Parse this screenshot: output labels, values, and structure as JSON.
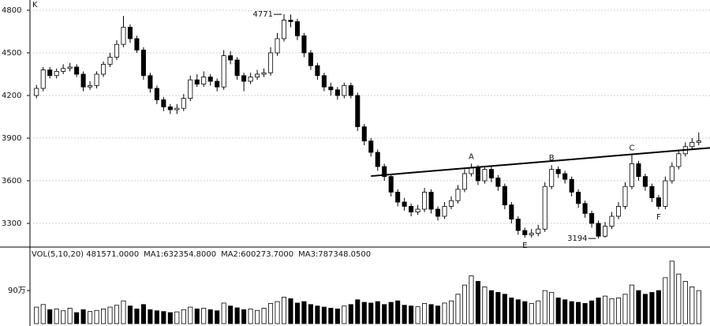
{
  "chart_data": [
    {
      "type": "candlestick",
      "axis_label": "K",
      "open": [
        4200,
        4250,
        4380,
        4340,
        4370,
        4390,
        4400,
        4350,
        4260,
        4270,
        4350,
        4420,
        4470,
        4560,
        4680,
        4600,
        4520,
        4340,
        4250,
        4170,
        4120,
        4100,
        4110,
        4180,
        4310,
        4280,
        4330,
        4300,
        4260,
        4480,
        4450,
        4340,
        4300,
        4330,
        4350,
        4360,
        4500,
        4600,
        4730,
        4720,
        4620,
        4500,
        4410,
        4340,
        4260,
        4240,
        4200,
        4270,
        4200,
        3980,
        3880,
        3800,
        3700,
        3630,
        3520,
        3450,
        3420,
        3380,
        3400,
        3520,
        3400,
        3350,
        3420,
        3460,
        3540,
        3650,
        3690,
        3600,
        3680,
        3620,
        3560,
        3430,
        3330,
        3250,
        3220,
        3230,
        3260,
        3560,
        3680,
        3650,
        3610,
        3520,
        3440,
        3370,
        3300,
        3210,
        3280,
        3350,
        3420,
        3560,
        3720,
        3630,
        3560,
        3480,
        3420,
        3600,
        3700,
        3790,
        3840,
        3870
      ],
      "high": [
        4275,
        4400,
        4400,
        4390,
        4420,
        4430,
        4420,
        4370,
        4300,
        4370,
        4440,
        4500,
        4590,
        4760,
        4700,
        4620,
        4540,
        4360,
        4270,
        4190,
        4140,
        4140,
        4210,
        4340,
        4350,
        4370,
        4350,
        4320,
        4520,
        4510,
        4470,
        4360,
        4360,
        4380,
        4390,
        4540,
        4640,
        4771,
        4770,
        4740,
        4640,
        4520,
        4430,
        4360,
        4290,
        4260,
        4290,
        4290,
        4220,
        4000,
        3900,
        3820,
        3720,
        3650,
        3540,
        3480,
        3440,
        3430,
        3550,
        3540,
        3420,
        3450,
        3490,
        3570,
        3680,
        3720,
        3710,
        3700,
        3700,
        3640,
        3580,
        3450,
        3350,
        3270,
        3260,
        3290,
        3590,
        3710,
        3700,
        3670,
        3630,
        3540,
        3460,
        3390,
        3320,
        3310,
        3380,
        3450,
        3590,
        3780,
        3740,
        3650,
        3580,
        3500,
        3630,
        3730,
        3820,
        3870,
        3900,
        3940
      ],
      "low": [
        4180,
        4230,
        4320,
        4320,
        4350,
        4370,
        4330,
        4230,
        4240,
        4250,
        4330,
        4400,
        4450,
        4540,
        4570,
        4500,
        4310,
        4220,
        4140,
        4090,
        4070,
        4070,
        4090,
        4160,
        4260,
        4260,
        4270,
        4230,
        4240,
        4420,
        4310,
        4230,
        4280,
        4310,
        4330,
        4340,
        4480,
        4580,
        4680,
        4590,
        4470,
        4380,
        4310,
        4230,
        4200,
        4170,
        4180,
        4180,
        3950,
        3850,
        3770,
        3670,
        3600,
        3490,
        3420,
        3390,
        3350,
        3360,
        3380,
        3370,
        3320,
        3330,
        3400,
        3440,
        3520,
        3630,
        3570,
        3580,
        3590,
        3530,
        3400,
        3300,
        3220,
        3200,
        3200,
        3210,
        3240,
        3540,
        3620,
        3580,
        3490,
        3410,
        3340,
        3270,
        3194,
        3200,
        3260,
        3330,
        3400,
        3540,
        3600,
        3530,
        3450,
        3400,
        3400,
        3580,
        3680,
        3770,
        3820,
        3850
      ],
      "close": [
        4250,
        4380,
        4340,
        4370,
        4390,
        4400,
        4350,
        4260,
        4270,
        4350,
        4420,
        4470,
        4560,
        4680,
        4600,
        4520,
        4340,
        4250,
        4170,
        4120,
        4100,
        4110,
        4180,
        4310,
        4280,
        4330,
        4300,
        4260,
        4480,
        4450,
        4340,
        4300,
        4330,
        4350,
        4360,
        4500,
        4600,
        4730,
        4720,
        4620,
        4500,
        4410,
        4340,
        4260,
        4240,
        4200,
        4270,
        4200,
        3980,
        3880,
        3800,
        3700,
        3630,
        3520,
        3450,
        3420,
        3380,
        3400,
        3520,
        3400,
        3350,
        3420,
        3460,
        3540,
        3650,
        3690,
        3600,
        3680,
        3620,
        3560,
        3430,
        3330,
        3250,
        3220,
        3230,
        3260,
        3560,
        3680,
        3650,
        3610,
        3520,
        3440,
        3370,
        3300,
        3210,
        3280,
        3350,
        3420,
        3560,
        3720,
        3630,
        3560,
        3480,
        3420,
        3600,
        3700,
        3790,
        3840,
        3870,
        3880
      ],
      "up_color": "#ffffff",
      "down_color": "#000000",
      "ylim": [
        3139,
        4872
      ],
      "yticks": [
        3300,
        3600,
        3900,
        4200,
        4500,
        4800
      ],
      "grid": true,
      "neckline": {
        "start_index": 50,
        "start_value": 3633,
        "end_index": 99,
        "end_value": 3825
      },
      "annotations": [
        {
          "text": "4771",
          "index": 37,
          "value": 4771,
          "position": "left"
        },
        {
          "text": "A",
          "index": 65,
          "value": 3720,
          "position": "above"
        },
        {
          "text": "B",
          "index": 77,
          "value": 3710,
          "position": "above"
        },
        {
          "text": "C",
          "index": 89,
          "value": 3780,
          "position": "above"
        },
        {
          "text": "E",
          "index": 73,
          "value": 3200,
          "position": "below"
        },
        {
          "text": "3194",
          "index": 84,
          "value": 3194,
          "position": "left"
        },
        {
          "text": "F",
          "index": 93,
          "value": 3400,
          "position": "below"
        }
      ]
    },
    {
      "type": "bar",
      "legend_texts": [
        "VOL(5,10,20) 481571.0000",
        "MA1:632354.8000",
        "MA2:600273.7000",
        "MA3:787348.0500"
      ],
      "values": [
        450000,
        520000,
        380000,
        400000,
        350000,
        420000,
        300000,
        380000,
        330000,
        360000,
        400000,
        450000,
        500000,
        620000,
        480000,
        400000,
        520000,
        380000,
        350000,
        330000,
        300000,
        320000,
        380000,
        450000,
        400000,
        420000,
        380000,
        350000,
        560000,
        480000,
        430000,
        380000,
        400000,
        360000,
        420000,
        550000,
        600000,
        720000,
        680000,
        560000,
        600000,
        520000,
        480000,
        450000,
        420000,
        400000,
        480000,
        520000,
        650000,
        580000,
        560000,
        600000,
        520000,
        580000,
        620000,
        500000,
        480000,
        460000,
        550000,
        520000,
        480000,
        560000,
        620000,
        800000,
        1050000,
        1300000,
        1150000,
        1000000,
        900000,
        850000,
        800000,
        700000,
        650000,
        600000,
        550000,
        620000,
        900000,
        850000,
        700000,
        650000,
        600000,
        580000,
        550000,
        620000,
        700000,
        750000,
        680000,
        700000,
        800000,
        1050000,
        900000,
        800000,
        850000,
        900000,
        1250000,
        1700000,
        1350000,
        1150000,
        1000000,
        900000
      ],
      "ylim": [
        0,
        2020000
      ],
      "yticks": [
        {
          "value": 900000,
          "label": "90万"
        }
      ]
    }
  ]
}
